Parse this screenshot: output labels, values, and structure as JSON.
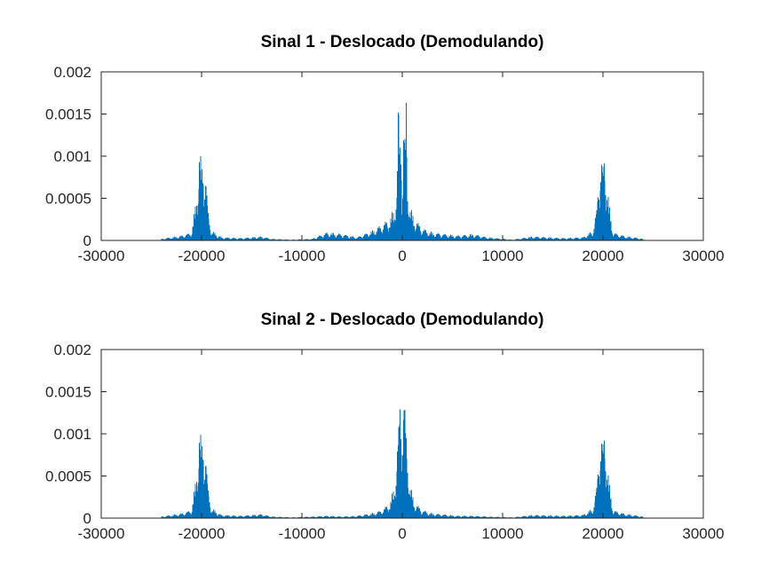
{
  "figure": {
    "background": "#ffffff"
  },
  "chart_data": [
    {
      "type": "line",
      "title": "Sinal 1 - Deslocado (Demodulando)",
      "xlabel": "",
      "ylabel": "",
      "xlim": [
        -30000,
        30000
      ],
      "ylim": [
        0,
        0.002
      ],
      "xticks": [
        -30000,
        -20000,
        -10000,
        0,
        10000,
        20000,
        30000
      ],
      "xtick_labels": [
        "-30000",
        "-20000",
        "-10000",
        "0",
        "10000",
        "20000",
        "30000"
      ],
      "yticks": [
        0,
        0.0005,
        0.001,
        0.0015,
        0.002
      ],
      "ytick_labels": [
        "0",
        "0.0005",
        "0.001",
        "0.0015",
        "0.002"
      ],
      "grid": false,
      "color": "#0072bd",
      "series": [
        {
          "x": [
            -24000,
            -22000,
            -21000,
            -20600,
            -20400,
            -20200,
            -20000,
            -19800,
            -19600,
            -19400,
            -19000,
            -18000,
            -16000,
            -14000,
            -13000,
            -11000,
            -9000,
            -7500,
            -6000,
            -4500,
            -3000,
            -2000,
            -1200,
            -800,
            -500,
            -400,
            -300,
            -100,
            0,
            100,
            300,
            400,
            500,
            800,
            1200,
            2000,
            3000,
            5500,
            7000,
            8500,
            11000,
            13000,
            16000,
            18000,
            19000,
            19400,
            19600,
            19800,
            20000,
            20200,
            20400,
            20600,
            21000,
            22000,
            24000
          ],
          "y": [
            2e-05,
            6e-05,
            0.0001,
            0.00045,
            0.0008,
            0.00118,
            0.0009,
            0.00112,
            0.00095,
            0.0004,
            0.00012,
            4e-05,
            3e-05,
            5e-05,
            2e-05,
            1e-05,
            2e-05,
            0.0001,
            8e-05,
            4e-05,
            0.00012,
            0.0002,
            0.00028,
            0.0004,
            0.0008,
            0.00185,
            0.0012,
            0.0016,
            0.0003,
            0.0016,
            0.0012,
            0.00185,
            0.0008,
            0.0004,
            0.00028,
            0.00015,
            0.0001,
            6e-05,
            8e-05,
            4e-05,
            1e-05,
            5e-05,
            3e-05,
            4e-05,
            0.00012,
            0.0004,
            0.00095,
            0.00112,
            0.0009,
            0.00118,
            0.0008,
            0.00045,
            0.0001,
            6e-05,
            2e-05
          ]
        }
      ]
    },
    {
      "type": "line",
      "title": "Sinal 2 - Deslocado (Demodulando)",
      "xlabel": "",
      "ylabel": "",
      "xlim": [
        -30000,
        30000
      ],
      "ylim": [
        0,
        0.002
      ],
      "xticks": [
        -30000,
        -20000,
        -10000,
        0,
        10000,
        20000,
        30000
      ],
      "xtick_labels": [
        "-30000",
        "-20000",
        "-10000",
        "0",
        "10000",
        "20000",
        "30000"
      ],
      "yticks": [
        0,
        0.0005,
        0.001,
        0.0015,
        0.002
      ],
      "ytick_labels": [
        "0",
        "0.0005",
        "0.001",
        "0.0015",
        "0.002"
      ],
      "grid": false,
      "color": "#0072bd",
      "series": [
        {
          "x": [
            -24000,
            -22000,
            -21000,
            -20600,
            -20400,
            -20200,
            -20000,
            -19800,
            -19600,
            -19400,
            -19000,
            -18000,
            -16000,
            -14000,
            -13000,
            -11000,
            -9000,
            -7500,
            -6000,
            -4500,
            -3000,
            -2000,
            -1200,
            -800,
            -500,
            -300,
            -200,
            0,
            200,
            300,
            500,
            800,
            1200,
            2000,
            3000,
            5500,
            7000,
            8500,
            11000,
            13000,
            16000,
            18000,
            19000,
            19400,
            19600,
            19800,
            20000,
            20200,
            20400,
            20600,
            21000,
            22000,
            24000
          ],
          "y": [
            2e-05,
            6e-05,
            0.0001,
            0.00045,
            0.0008,
            0.00116,
            0.0009,
            0.00112,
            0.00093,
            0.0004,
            0.00012,
            4e-05,
            3e-05,
            5e-05,
            2e-05,
            1e-05,
            2e-05,
            3e-05,
            2e-05,
            3e-05,
            6e-05,
            0.0001,
            0.0002,
            0.0004,
            0.0009,
            0.0012,
            0.00166,
            0.0013,
            0.00166,
            0.0012,
            0.0009,
            0.0004,
            0.0002,
            0.0001,
            6e-05,
            3e-05,
            3e-05,
            2e-05,
            1e-05,
            4e-05,
            3e-05,
            4e-05,
            0.00012,
            0.0004,
            0.00093,
            0.00112,
            0.0009,
            0.00116,
            0.0008,
            0.00045,
            0.0001,
            6e-05,
            2e-05
          ]
        }
      ]
    }
  ]
}
